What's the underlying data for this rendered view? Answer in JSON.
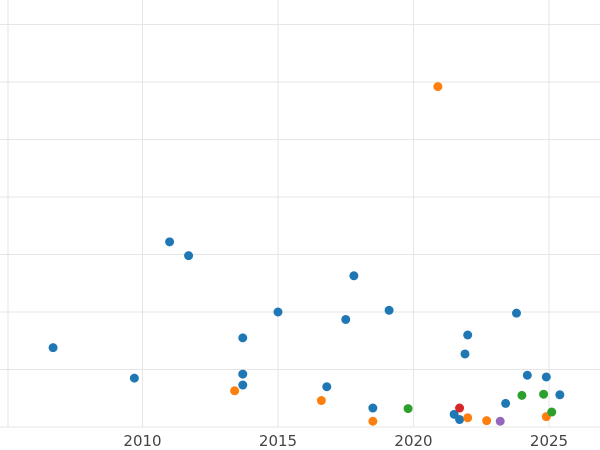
{
  "chart_data": {
    "type": "scatter",
    "title": "",
    "xlabel": "",
    "ylabel": "",
    "x_axis": "date (year)",
    "xlim": [
      2005.0,
      2026.9
    ],
    "ylim": [
      0,
      7.4
    ],
    "x_ticks": [
      2010,
      2015,
      2020,
      2025
    ],
    "y_gridlines": [
      0,
      1,
      2,
      3,
      4,
      5,
      6,
      7
    ],
    "grid": true,
    "legend": "none",
    "series": [
      {
        "color": "#1f77b4",
        "points": [
          {
            "x": 2006.7,
            "y": 1.38
          },
          {
            "x": 2009.7,
            "y": 0.85
          },
          {
            "x": 2011.0,
            "y": 3.22
          },
          {
            "x": 2011.7,
            "y": 2.98
          },
          {
            "x": 2013.7,
            "y": 1.55
          },
          {
            "x": 2013.7,
            "y": 0.92
          },
          {
            "x": 2013.7,
            "y": 0.73
          },
          {
            "x": 2015.0,
            "y": 2.0
          },
          {
            "x": 2016.8,
            "y": 0.7
          },
          {
            "x": 2017.5,
            "y": 1.87
          },
          {
            "x": 2017.8,
            "y": 2.63
          },
          {
            "x": 2018.5,
            "y": 0.33
          },
          {
            "x": 2019.1,
            "y": 2.03
          },
          {
            "x": 2021.5,
            "y": 0.22
          },
          {
            "x": 2021.7,
            "y": 0.13
          },
          {
            "x": 2021.9,
            "y": 1.27
          },
          {
            "x": 2022.0,
            "y": 1.6
          },
          {
            "x": 2023.4,
            "y": 0.41
          },
          {
            "x": 2023.8,
            "y": 1.98
          },
          {
            "x": 2024.2,
            "y": 0.9
          },
          {
            "x": 2024.9,
            "y": 0.87
          },
          {
            "x": 2025.4,
            "y": 0.56
          }
        ]
      },
      {
        "color": "#ff7f0e",
        "points": [
          {
            "x": 2013.4,
            "y": 0.63
          },
          {
            "x": 2016.6,
            "y": 0.46
          },
          {
            "x": 2018.5,
            "y": 0.1
          },
          {
            "x": 2020.9,
            "y": 5.92
          },
          {
            "x": 2022.0,
            "y": 0.16
          },
          {
            "x": 2022.7,
            "y": 0.11
          },
          {
            "x": 2024.9,
            "y": 0.18
          }
        ]
      },
      {
        "color": "#2ca02c",
        "points": [
          {
            "x": 2019.8,
            "y": 0.32
          },
          {
            "x": 2024.0,
            "y": 0.55
          },
          {
            "x": 2024.8,
            "y": 0.57
          },
          {
            "x": 2025.1,
            "y": 0.26
          }
        ]
      },
      {
        "color": "#d62728",
        "points": [
          {
            "x": 2021.7,
            "y": 0.33
          }
        ]
      },
      {
        "color": "#9467bd",
        "points": [
          {
            "x": 2023.2,
            "y": 0.1
          }
        ]
      }
    ]
  }
}
